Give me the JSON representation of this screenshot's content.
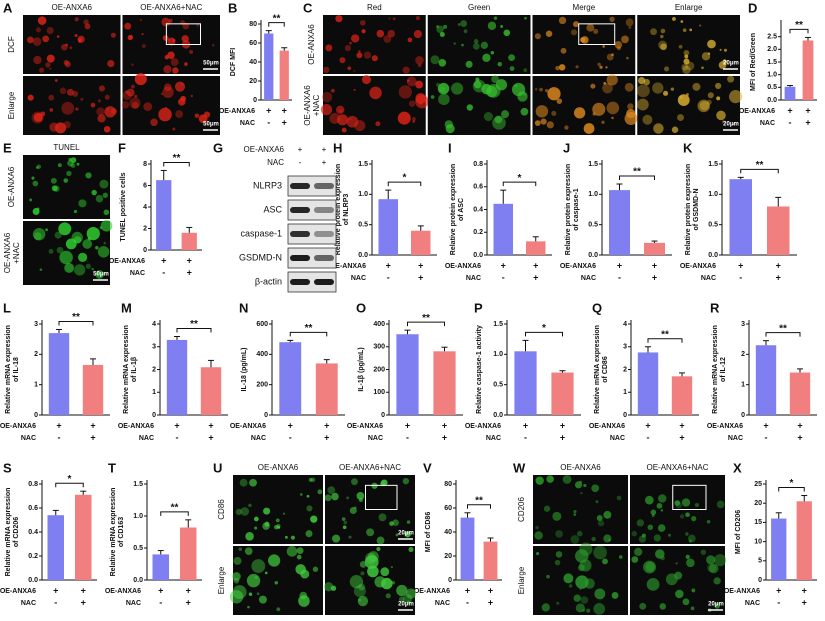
{
  "chart_data": [
    {
      "type": "bar",
      "panel": "B",
      "ylabel": [
        "DCF MFI"
      ],
      "conditions": [
        {
          "name": "OE-ANXA6",
          "marks": [
            "+",
            "+"
          ]
        },
        {
          "name": "NAC",
          "marks": [
            "-",
            "+"
          ]
        }
      ],
      "values": [
        70,
        52
      ],
      "errors": [
        3,
        3
      ],
      "colors": [
        "#7f7ff2",
        "#f27f7f"
      ],
      "ylim": [
        0,
        80
      ],
      "yticks": [
        0,
        20,
        40,
        60,
        80
      ],
      "significance": "**"
    },
    {
      "type": "bar",
      "panel": "D",
      "ylabel": [
        "MFI of Red/Green"
      ],
      "conditions": [
        {
          "name": "OE-ANXA6",
          "marks": [
            "+",
            "+"
          ]
        },
        {
          "name": "NAC",
          "marks": [
            "-",
            "+"
          ]
        }
      ],
      "values": [
        0.52,
        2.35
      ],
      "errors": [
        0.05,
        0.12
      ],
      "colors": [
        "#7f7ff2",
        "#f27f7f"
      ],
      "ylim": [
        0,
        3
      ],
      "yticks": [
        {
          "value": 0,
          "label": "0.0"
        },
        0.5,
        {
          "value": 1,
          "label": "1.0"
        },
        1.5,
        {
          "value": 2,
          "label": "2.0"
        },
        2.5
      ],
      "significance": "**"
    },
    {
      "type": "bar",
      "panel": "F",
      "ylabel": [
        "TUNEL positive cells"
      ],
      "conditions": [
        {
          "name": "OE-ANXA6",
          "marks": [
            "+",
            "+"
          ]
        },
        {
          "name": "NAC",
          "marks": [
            "-",
            "+"
          ]
        }
      ],
      "values": [
        6.5,
        1.6
      ],
      "errors": [
        0.9,
        0.5
      ],
      "colors": [
        "#7f7ff2",
        "#f27f7f"
      ],
      "ylim": [
        0,
        8
      ],
      "yticks": [
        0,
        2,
        4,
        6,
        8
      ],
      "significance": "**"
    },
    {
      "type": "bar",
      "panel": "H",
      "ylabel": [
        "Relative protein expression",
        "of NLRP3"
      ],
      "conditions": [
        {
          "name": "OE-ANXA6",
          "marks": [
            "+",
            "+"
          ]
        },
        {
          "name": "NAC",
          "marks": [
            "-",
            "+"
          ]
        }
      ],
      "values": [
        0.92,
        0.4
      ],
      "errors": [
        0.15,
        0.08
      ],
      "colors": [
        "#7f7ff2",
        "#f27f7f"
      ],
      "ylim": [
        0,
        1.5
      ],
      "yticks": [
        {
          "value": 0,
          "label": "0.0"
        },
        0.5,
        {
          "value": 1,
          "label": "1.0"
        },
        1.5
      ],
      "significance": "*"
    },
    {
      "type": "bar",
      "panel": "I",
      "ylabel": [
        "Relative protein expression",
        "of ASC"
      ],
      "conditions": [
        {
          "name": "OE-ANXA6",
          "marks": [
            "+",
            "+"
          ]
        },
        {
          "name": "NAC",
          "marks": [
            "-",
            "+"
          ]
        }
      ],
      "values": [
        0.45,
        0.12
      ],
      "errors": [
        0.12,
        0.04
      ],
      "colors": [
        "#7f7ff2",
        "#f27f7f"
      ],
      "ylim": [
        0,
        0.8
      ],
      "yticks": [
        {
          "value": 0,
          "label": "0.0"
        },
        0.2,
        0.4,
        0.6,
        0.8
      ],
      "significance": "*"
    },
    {
      "type": "bar",
      "panel": "J",
      "ylabel": [
        "Relative protein expression",
        "of caspase-1"
      ],
      "conditions": [
        {
          "name": "OE-ANXA6",
          "marks": [
            "+",
            "+"
          ]
        },
        {
          "name": "NAC",
          "marks": [
            "-",
            "+"
          ]
        }
      ],
      "values": [
        1.07,
        0.2
      ],
      "errors": [
        0.1,
        0.03
      ],
      "colors": [
        "#7f7ff2",
        "#f27f7f"
      ],
      "ylim": [
        0,
        1.5
      ],
      "yticks": [
        {
          "value": 0,
          "label": "0.0"
        },
        0.5,
        {
          "value": 1,
          "label": "1.0"
        },
        1.5
      ],
      "significance": "**"
    },
    {
      "type": "bar",
      "panel": "K",
      "ylabel": [
        "Relative protein expression",
        "of GSDMD-N"
      ],
      "conditions": [
        {
          "name": "OE-ANXA6",
          "marks": [
            "+",
            "+"
          ]
        },
        {
          "name": "NAC",
          "marks": [
            "-",
            "+"
          ]
        }
      ],
      "values": [
        1.25,
        0.8
      ],
      "errors": [
        0.03,
        0.15
      ],
      "colors": [
        "#7f7ff2",
        "#f27f7f"
      ],
      "ylim": [
        0,
        1.5
      ],
      "yticks": [
        {
          "value": 0,
          "label": "0.0"
        },
        0.5,
        {
          "value": 1,
          "label": "1.0"
        },
        1.5
      ],
      "significance": "**"
    },
    {
      "type": "bar",
      "panel": "L",
      "ylabel": [
        "Relative mRNA expression",
        "of IL-18"
      ],
      "conditions": [
        {
          "name": "OE-ANXA6",
          "marks": [
            "+",
            "+"
          ]
        },
        {
          "name": "NAC",
          "marks": [
            "-",
            "+"
          ]
        }
      ],
      "values": [
        2.7,
        1.65
      ],
      "errors": [
        0.12,
        0.2
      ],
      "colors": [
        "#7f7ff2",
        "#f27f7f"
      ],
      "ylim": [
        0,
        3
      ],
      "yticks": [
        0,
        1,
        2,
        3
      ],
      "significance": "**"
    },
    {
      "type": "bar",
      "panel": "M",
      "ylabel": [
        "Relative mRNA expression",
        "of IL-1β"
      ],
      "conditions": [
        {
          "name": "OE-ANXA6",
          "marks": [
            "+",
            "+"
          ]
        },
        {
          "name": "NAC",
          "marks": [
            "-",
            "+"
          ]
        }
      ],
      "values": [
        3.3,
        2.1
      ],
      "errors": [
        0.15,
        0.3
      ],
      "colors": [
        "#7f7ff2",
        "#f27f7f"
      ],
      "ylim": [
        0,
        4
      ],
      "yticks": [
        0,
        1,
        2,
        3,
        4
      ],
      "significance": "**"
    },
    {
      "type": "bar",
      "panel": "N",
      "ylabel": [
        "IL-18  (pg/mL)"
      ],
      "conditions": [
        {
          "name": "OE-ANXA6",
          "marks": [
            "+",
            "+"
          ]
        },
        {
          "name": "NAC",
          "marks": [
            "-",
            "+"
          ]
        }
      ],
      "values": [
        480,
        340
      ],
      "errors": [
        12,
        25
      ],
      "colors": [
        "#7f7ff2",
        "#f27f7f"
      ],
      "ylim": [
        0,
        600
      ],
      "yticks": [
        0,
        200,
        400,
        600
      ],
      "significance": "**"
    },
    {
      "type": "bar",
      "panel": "O",
      "ylabel": [
        "IL-1β  (pg/mL)"
      ],
      "conditions": [
        {
          "name": "OE-ANXA6",
          "marks": [
            "+",
            "+"
          ]
        },
        {
          "name": "NAC",
          "marks": [
            "-",
            "+"
          ]
        }
      ],
      "values": [
        355,
        280
      ],
      "errors": [
        18,
        18
      ],
      "colors": [
        "#7f7ff2",
        "#f27f7f"
      ],
      "ylim": [
        0,
        400
      ],
      "yticks": [
        0,
        100,
        200,
        300,
        400
      ],
      "significance": "**"
    },
    {
      "type": "bar",
      "panel": "P",
      "ylabel": [
        "Relative caspase-1 activity"
      ],
      "conditions": [
        {
          "name": "OE-ANXA6",
          "marks": [
            "+",
            "+"
          ]
        },
        {
          "name": "NAC",
          "marks": [
            "-",
            "+"
          ]
        }
      ],
      "values": [
        1.05,
        0.7
      ],
      "errors": [
        0.18,
        0.03
      ],
      "colors": [
        "#7f7ff2",
        "#f27f7f"
      ],
      "ylim": [
        0,
        1.5
      ],
      "yticks": [
        {
          "value": 0,
          "label": "0.0"
        },
        0.5,
        {
          "value": 1,
          "label": "1.0"
        },
        1.5
      ],
      "significance": "*"
    },
    {
      "type": "bar",
      "panel": "Q",
      "ylabel": [
        "Relative mRNA expression",
        "of CD86"
      ],
      "conditions": [
        {
          "name": "OE-ANXA6",
          "marks": [
            "+",
            "+"
          ]
        },
        {
          "name": "NAC",
          "marks": [
            "-",
            "+"
          ]
        }
      ],
      "values": [
        2.75,
        1.7
      ],
      "errors": [
        0.25,
        0.15
      ],
      "colors": [
        "#7f7ff2",
        "#f27f7f"
      ],
      "ylim": [
        0,
        4
      ],
      "yticks": [
        0,
        1,
        2,
        3,
        4
      ],
      "significance": "**"
    },
    {
      "type": "bar",
      "panel": "R",
      "ylabel": [
        "Relative mRNA expression",
        "of IL-12"
      ],
      "conditions": [
        {
          "name": "OE-ANXA6",
          "marks": [
            "+",
            "+"
          ]
        },
        {
          "name": "NAC",
          "marks": [
            "-",
            "+"
          ]
        }
      ],
      "values": [
        2.3,
        1.4
      ],
      "errors": [
        0.15,
        0.12
      ],
      "colors": [
        "#7f7ff2",
        "#f27f7f"
      ],
      "ylim": [
        0,
        3
      ],
      "yticks": [
        0,
        1,
        2,
        3
      ],
      "significance": "**"
    },
    {
      "type": "bar",
      "panel": "S",
      "ylabel": [
        "Relative mRNA expression",
        "of CD206"
      ],
      "conditions": [
        {
          "name": "OE-ANXA6",
          "marks": [
            "+",
            "+"
          ]
        },
        {
          "name": "NAC",
          "marks": [
            "-",
            "+"
          ]
        }
      ],
      "values": [
        0.54,
        0.71
      ],
      "errors": [
        0.04,
        0.03
      ],
      "colors": [
        "#7f7ff2",
        "#f27f7f"
      ],
      "ylim": [
        0,
        0.8
      ],
      "yticks": [
        {
          "value": 0,
          "label": "0.0"
        },
        0.2,
        0.4,
        0.6,
        0.8
      ],
      "significance": "*"
    },
    {
      "type": "bar",
      "panel": "T",
      "ylabel": [
        "Relative mRNA expression",
        "of CD163"
      ],
      "conditions": [
        {
          "name": "OE-ANXA6",
          "marks": [
            "+",
            "+"
          ]
        },
        {
          "name": "NAC",
          "marks": [
            "-",
            "+"
          ]
        }
      ],
      "values": [
        0.4,
        0.82
      ],
      "errors": [
        0.06,
        0.12
      ],
      "colors": [
        "#7f7ff2",
        "#f27f7f"
      ],
      "ylim": [
        0,
        1.5
      ],
      "yticks": [
        {
          "value": 0,
          "label": "0.0"
        },
        0.5,
        {
          "value": 1,
          "label": "1.0"
        },
        1.5
      ],
      "significance": "**"
    },
    {
      "type": "bar",
      "panel": "V",
      "ylabel": [
        "MFI of CD86"
      ],
      "conditions": [
        {
          "name": "OE-ANXA6",
          "marks": [
            "+",
            "+"
          ]
        },
        {
          "name": "NAC",
          "marks": [
            "-",
            "+"
          ]
        }
      ],
      "values": [
        52,
        32
      ],
      "errors": [
        4,
        3
      ],
      "colors": [
        "#7f7ff2",
        "#f27f7f"
      ],
      "ylim": [
        0,
        80
      ],
      "yticks": [
        0,
        20,
        40,
        60,
        80
      ],
      "significance": "**"
    },
    {
      "type": "bar",
      "panel": "X",
      "ylabel": [
        "MFI of CD206"
      ],
      "conditions": [
        {
          "name": "OE-ANXA6",
          "marks": [
            "+",
            "+"
          ]
        },
        {
          "name": "NAC",
          "marks": [
            "-",
            "+"
          ]
        }
      ],
      "values": [
        16,
        20.5
      ],
      "errors": [
        1.5,
        1.5
      ],
      "colors": [
        "#7f7ff2",
        "#f27f7f"
      ],
      "ylim": [
        0,
        25
      ],
      "yticks": [
        0,
        5,
        10,
        15,
        20,
        25
      ],
      "significance": "*"
    }
  ],
  "image_panels": [
    {
      "panel": "A",
      "columns": [
        "OE-ANXA6",
        "OE-ANXA6+NAC"
      ],
      "rows": [
        [
          "DCF"
        ],
        [
          "Enlarge"
        ]
      ],
      "tones": [
        "#e02418",
        "#e02418"
      ],
      "scale_bars": [
        "50μm",
        "50μm"
      ]
    },
    {
      "panel": "C",
      "columns": [
        "Red",
        "Green",
        "Merge",
        "Enlarge"
      ],
      "rows": [
        [
          "OE-ANXA6"
        ],
        [
          "OE-ANXA6",
          "+NAC"
        ]
      ],
      "tones": [
        "#e02418",
        "#38c030",
        "#e08a20",
        "#d8b030"
      ],
      "scale_bars": [
        "20μm",
        "20μm"
      ]
    },
    {
      "panel": "E",
      "columns": [
        "TUNEL"
      ],
      "rows": [
        [
          "OE-ANXA6"
        ],
        [
          "OE-ANXA6",
          "+NAC"
        ]
      ],
      "tones": [
        "#30d030"
      ],
      "scale_bars": [
        "50μm"
      ]
    },
    {
      "panel": "U",
      "columns": [
        "OE-ANXA6",
        "OE-ANXA6+NAC"
      ],
      "rows": [
        [
          "CD86"
        ],
        [
          "Enlarge"
        ]
      ],
      "tones": [
        "#44d040",
        "#44d040"
      ],
      "scale_bars": [
        "20μm",
        "20μm"
      ]
    },
    {
      "panel": "W",
      "columns": [
        "OE-ANXA6",
        "OE-ANXA6+NAC"
      ],
      "rows": [
        [
          "CD206"
        ],
        [
          "Enlarge"
        ]
      ],
      "tones": [
        "#2c9a2c",
        "#2c9a2c"
      ],
      "scale_bars": [
        "20μm"
      ]
    }
  ],
  "blot": {
    "panel": "G",
    "conditions": [
      {
        "name": "OE-ANXA6",
        "marks": [
          "+",
          "+"
        ]
      },
      {
        "name": "NAC",
        "marks": [
          "-",
          "+"
        ]
      }
    ],
    "bands": [
      "NLRP3",
      "ASC",
      "caspase-1",
      "GSDMD-N",
      "β-actin"
    ]
  }
}
